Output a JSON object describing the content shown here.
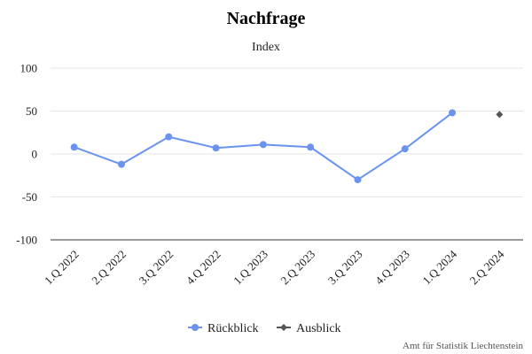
{
  "chart_data": {
    "type": "line",
    "title": "Nachfrage",
    "subtitle": "Index",
    "xlabel": "",
    "ylabel": "",
    "categories": [
      "1.Q 2022",
      "2.Q 2022",
      "3.Q 2022",
      "4.Q 2022",
      "1.Q 2023",
      "2.Q 2023",
      "3.Q 2023",
      "4.Q 2023",
      "1.Q 2024",
      "2.Q 2024"
    ],
    "ylim": [
      -100,
      100
    ],
    "yticks": [
      100,
      50,
      0,
      -50,
      -100
    ],
    "grid": true,
    "legend": "bottom-center",
    "series": [
      {
        "name": "Rückblick",
        "color": "#6a93f0",
        "marker": "circle",
        "values": [
          8,
          -12,
          20,
          7,
          11,
          8,
          -30,
          6,
          48,
          null
        ]
      },
      {
        "name": "Ausblick",
        "color": "#555555",
        "marker": "diamond",
        "values": [
          null,
          null,
          null,
          null,
          null,
          null,
          null,
          null,
          null,
          46
        ]
      }
    ]
  },
  "credit": "Amt für Statistik Liechtenstein"
}
